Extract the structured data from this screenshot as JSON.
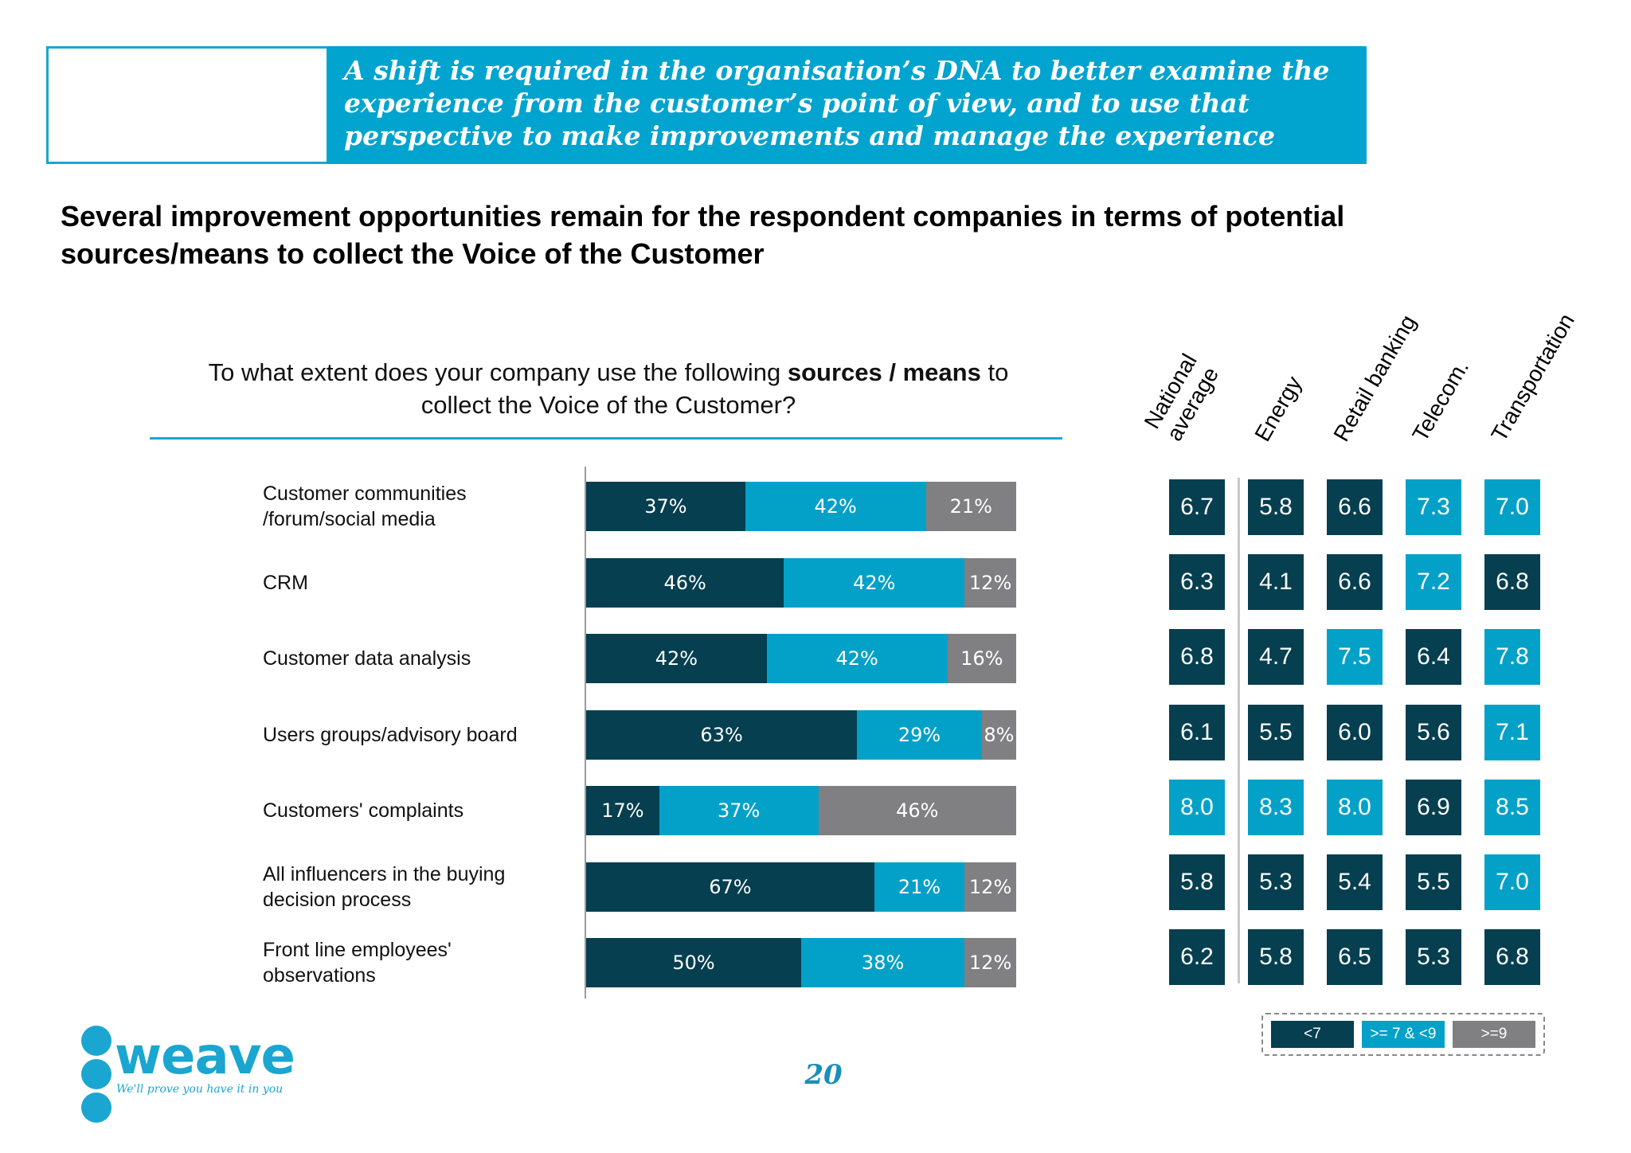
{
  "banner": {
    "lines": [
      "A shift is required in the organisation’s DNA to better examine the",
      "experience from the customer’s point of view, and to use that",
      "perspective to make improvements and manage the experience"
    ]
  },
  "headline": {
    "line1": "Several improvement opportunities remain for the respondent companies in terms of potential",
    "line2": "sources/means to collect the Voice of the Customer"
  },
  "question": {
    "part1": "To what extent does your company use the following ",
    "bold": "sources / means",
    "part2": " to",
    "line2": "collect the Voice of the Customer?"
  },
  "colors": {
    "dark": "#053f50",
    "mid": "#03a1c8",
    "gray": "#808082"
  },
  "chart_data": [
    {
      "type": "bar",
      "orientation": "horizontal",
      "stacked": true,
      "categories": [
        "Customer communities /forum/social media",
        "CRM",
        "Customer data analysis",
        "Users groups/advisory board",
        "Customers' complaints",
        "All influencers in the buying decision process",
        "Front line employees' observations"
      ],
      "category_lines": [
        [
          "Customer communities",
          "/forum/social media"
        ],
        [
          "CRM"
        ],
        [
          "Customer data analysis"
        ],
        [
          "Users groups/advisory board"
        ],
        [
          "Customers' complaints"
        ],
        [
          "All influencers in the buying",
          "decision process"
        ],
        [
          "Front line employees'",
          "observations"
        ]
      ],
      "series": [
        {
          "color": "#053f50",
          "values": [
            37,
            46,
            42,
            63,
            17,
            67,
            50
          ]
        },
        {
          "color": "#03a1c8",
          "values": [
            42,
            42,
            42,
            29,
            37,
            21,
            38
          ]
        },
        {
          "color": "#808082",
          "values": [
            21,
            12,
            16,
            8,
            46,
            12,
            12
          ]
        }
      ],
      "value_suffix": "%",
      "xlim": [
        0,
        100
      ]
    },
    {
      "type": "heatmap",
      "columns": [
        "National average",
        "Energy",
        "Retail banking",
        "Telecom.",
        "Transportation"
      ],
      "column_lines": [
        [
          "National",
          "average"
        ],
        [
          "Energy"
        ],
        [
          "Retail banking"
        ],
        [
          "Telecom."
        ],
        [
          "Transportation"
        ]
      ],
      "rows": [
        [
          6.7,
          5.8,
          6.6,
          7.3,
          7.0
        ],
        [
          6.3,
          4.1,
          6.6,
          7.2,
          6.8
        ],
        [
          6.8,
          4.7,
          7.5,
          6.4,
          7.8
        ],
        [
          6.1,
          5.5,
          6.0,
          5.6,
          7.1
        ],
        [
          8.0,
          8.3,
          8.0,
          6.9,
          8.5
        ],
        [
          5.8,
          5.3,
          5.4,
          5.5,
          7.0
        ],
        [
          6.2,
          5.8,
          6.5,
          5.3,
          6.8
        ]
      ],
      "legend": [
        {
          "label": "<7",
          "color": "#053f50"
        },
        {
          "label": ">= 7 & <9",
          "color": "#03a1c8"
        },
        {
          "label": ">=9",
          "color": "#808082"
        }
      ]
    }
  ],
  "logo": {
    "word": "weave",
    "tagline": "We'll prove you have it in you"
  },
  "page_number": "20"
}
